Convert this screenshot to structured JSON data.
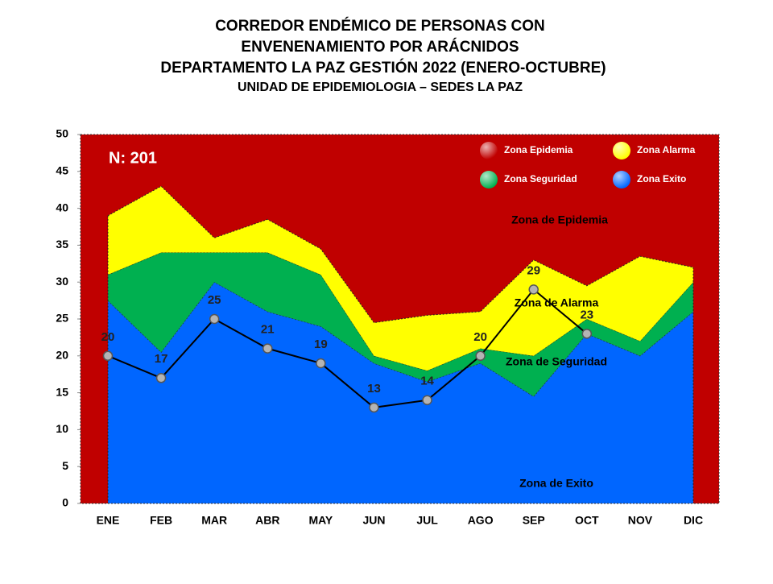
{
  "chart_data": {
    "type": "stacked_area_line",
    "title": [
      "CORREDOR ENDÉMICO DE PERSONAS CON",
      "ENVENENAMIENTO POR ARÁCNIDOS",
      "DEPARTAMENTO LA PAZ GESTIÓN 2022 (ENERO-OCTUBRE)",
      "UNIDAD DE EPIDEMIOLOGIA – SEDES LA PAZ"
    ],
    "categories": [
      "ENE",
      "FEB",
      "MAR",
      "ABR",
      "MAY",
      "JUN",
      "JUL",
      "AGO",
      "SEP",
      "OCT",
      "NOV",
      "DIC"
    ],
    "ylim": [
      0,
      50
    ],
    "yticks": [
      0,
      5,
      10,
      15,
      20,
      25,
      30,
      35,
      40,
      45,
      50
    ],
    "legend": [
      {
        "name": "Zona Epidemia",
        "color": "#c00000"
      },
      {
        "name": "Zona Alarma",
        "color": "#ffff00"
      },
      {
        "name": "Zona Seguridad",
        "color": "#00b050"
      },
      {
        "name": "Zona Exito",
        "color": "#0066ff"
      }
    ],
    "series": [
      {
        "name": "Zona de Exito",
        "color": "#0066ff",
        "values": [
          27.5,
          20.5,
          30,
          26,
          24,
          19,
          16.5,
          19,
          14.5,
          23,
          20,
          26
        ]
      },
      {
        "name": "Zona de Seguridad",
        "color": "#00b050",
        "values": [
          3.5,
          13.5,
          4,
          8,
          7,
          1,
          1.5,
          2,
          5.5,
          2,
          2,
          4
        ]
      },
      {
        "name": "Zona de Alarma",
        "color": "#ffff00",
        "values": [
          8,
          9,
          2,
          4.5,
          3.5,
          4.5,
          7.5,
          5,
          13,
          4.5,
          11.5,
          2
        ]
      }
    ],
    "line": {
      "color": "#000000",
      "values": [
        20,
        17,
        25,
        21,
        19,
        13,
        14,
        20,
        29,
        23,
        null,
        null
      ]
    },
    "annotations": [
      "N: 201",
      "Zona de Epidemia"
    ]
  }
}
